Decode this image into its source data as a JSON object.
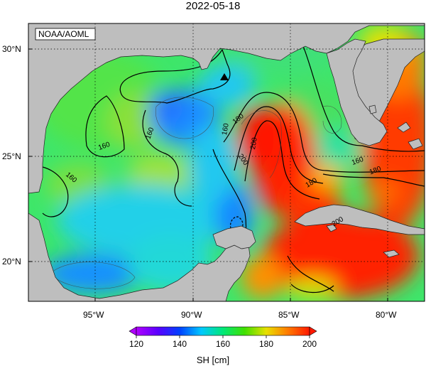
{
  "title": "2022-05-18",
  "credit": "NOAA/AOML",
  "colors": {
    "land": "#bebebe",
    "frame": "#000000",
    "grid": "#000000"
  },
  "map": {
    "lat_labels": [
      "30°N",
      "25°N",
      "20°N"
    ],
    "lon_labels": [
      "95°W",
      "90°W",
      "85°W",
      "80°W"
    ]
  },
  "contour_labels": [
    "160",
    "160",
    "160",
    "160",
    "180",
    "160",
    "200",
    "200",
    "180",
    "180",
    "200"
  ],
  "marker": {
    "symbol": "triangle",
    "lon": -88.4,
    "lat": 28.7
  },
  "colorbar": {
    "label": "SH [cm]",
    "ticks": [
      "120",
      "140",
      "160",
      "180",
      "200"
    ],
    "min": 120,
    "max": 200,
    "stops": [
      {
        "value": 120,
        "color": "#b000ff"
      },
      {
        "value": 130,
        "color": "#5a00ff"
      },
      {
        "value": 140,
        "color": "#0040ff"
      },
      {
        "value": 150,
        "color": "#00c8ff"
      },
      {
        "value": 160,
        "color": "#00e878"
      },
      {
        "value": 170,
        "color": "#40e000"
      },
      {
        "value": 180,
        "color": "#e8e000"
      },
      {
        "value": 190,
        "color": "#ff7a00"
      },
      {
        "value": 200,
        "color": "#ff1800"
      }
    ]
  }
}
